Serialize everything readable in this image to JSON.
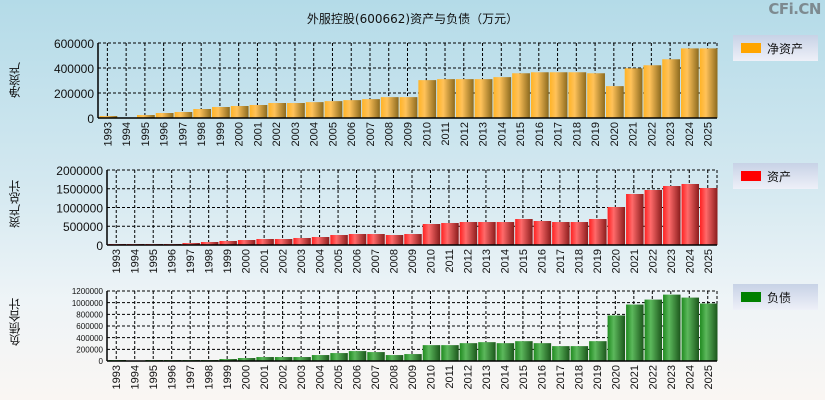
{
  "title": "外服控股(600662)资产与负债（万元）",
  "logo": "CFi.CN",
  "chart_data": [
    {
      "type": "bar",
      "title": "外服控股(600662)资产与负债（万元）",
      "ylabel": "净资产",
      "legend": "净资产",
      "color": "#ffa500",
      "ylim": [
        0,
        600000
      ],
      "yticks": [
        "0",
        "200000",
        "400000",
        "600000"
      ],
      "categories": [
        "1993",
        "1994",
        "1995",
        "1996",
        "1997",
        "1998",
        "1999",
        "2000",
        "2001",
        "2002",
        "2003",
        "2004",
        "2005",
        "2006",
        "2007",
        "2008",
        "2009",
        "2010",
        "2011",
        "2012",
        "2013",
        "2014",
        "2015",
        "2016",
        "2017",
        "2018",
        "2019",
        "2020",
        "2021",
        "2022",
        "2023",
        "2024",
        "2025"
      ],
      "values": [
        16000,
        0,
        24000,
        40000,
        48000,
        72000,
        88000,
        96000,
        104000,
        120000,
        120000,
        127000,
        135000,
        143000,
        151000,
        167000,
        167000,
        303000,
        311000,
        311000,
        311000,
        327000,
        358000,
        366000,
        366000,
        366000,
        358000,
        255000,
        398000,
        422000,
        470000,
        557000,
        557000
      ]
    },
    {
      "type": "bar",
      "ylabel": "资产总计",
      "legend": "资产",
      "color": "#ff0000",
      "ylim": [
        0,
        2000000
      ],
      "yticks": [
        "0",
        "500000",
        "1000000",
        "1500000",
        "2000000"
      ],
      "categories": [
        "1993",
        "1994",
        "1995",
        "1996",
        "1997",
        "1998",
        "1999",
        "2000",
        "2001",
        "2002",
        "2003",
        "2004",
        "2005",
        "2006",
        "2007",
        "2008",
        "2009",
        "2010",
        "2011",
        "2012",
        "2013",
        "2014",
        "2015",
        "2016",
        "2017",
        "2018",
        "2019",
        "2020",
        "2021",
        "2022",
        "2023",
        "2024",
        "2025"
      ],
      "values": [
        27000,
        27000,
        27000,
        27000,
        53000,
        80000,
        107000,
        133000,
        160000,
        160000,
        187000,
        213000,
        267000,
        293000,
        293000,
        267000,
        293000,
        560000,
        587000,
        613000,
        613000,
        613000,
        693000,
        640000,
        613000,
        613000,
        693000,
        1013000,
        1360000,
        1467000,
        1573000,
        1627000,
        1520000
      ]
    },
    {
      "type": "bar",
      "ylabel": "负债合计",
      "legend": "负债",
      "color": "#008000",
      "ylim": [
        0,
        1200000
      ],
      "yticks": [
        "0",
        "200000",
        "400000",
        "600000",
        "800000",
        "1000000",
        "1200000"
      ],
      "categories": [
        "1993",
        "1994",
        "1995",
        "1996",
        "1997",
        "1998",
        "1999",
        "2000",
        "2001",
        "2002",
        "2003",
        "2004",
        "2005",
        "2006",
        "2007",
        "2008",
        "2009",
        "2010",
        "2011",
        "2012",
        "2013",
        "2014",
        "2015",
        "2016",
        "2017",
        "2018",
        "2019",
        "2020",
        "2021",
        "2022",
        "2023",
        "2024",
        "2025"
      ],
      "values": [
        17000,
        0,
        17000,
        17000,
        17000,
        17000,
        34000,
        51000,
        68000,
        68000,
        68000,
        102000,
        136000,
        170000,
        153000,
        102000,
        119000,
        272000,
        272000,
        306000,
        323000,
        306000,
        340000,
        306000,
        255000,
        255000,
        340000,
        781000,
        968000,
        1053000,
        1138000,
        1087000,
        985000
      ]
    }
  ]
}
